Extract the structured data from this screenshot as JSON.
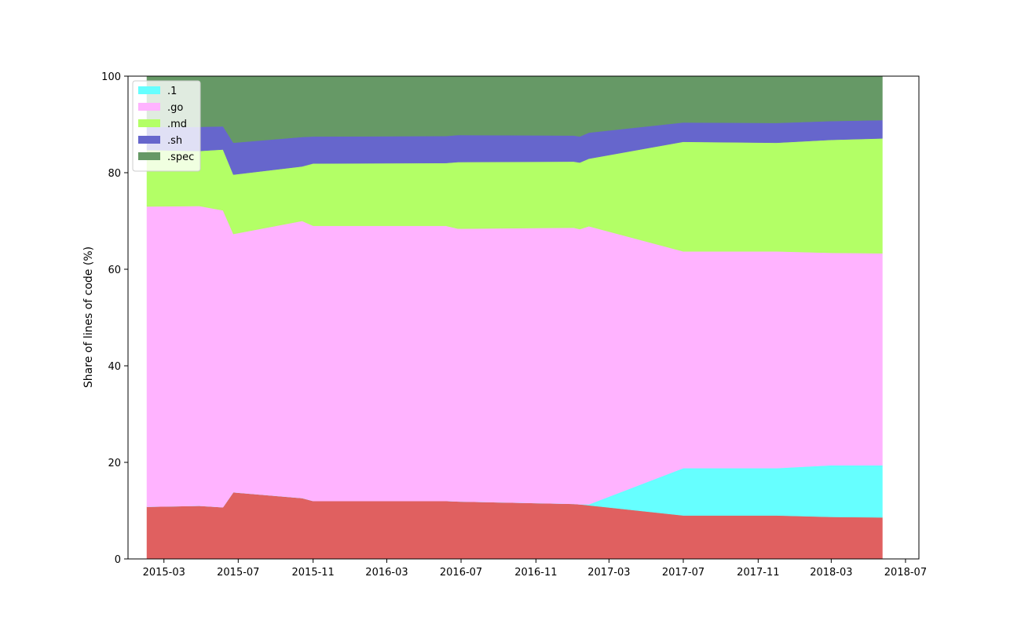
{
  "chart_data": {
    "type": "area",
    "stacked": true,
    "title": "",
    "xlabel": "",
    "ylabel": "Share of lines of code (%)",
    "ylim": [
      0,
      100
    ],
    "yticks": [
      0,
      20,
      40,
      60,
      80,
      100
    ],
    "xlim": [
      "2015-01-01",
      "2018-07-23"
    ],
    "xticks": [
      "2015-03",
      "2015-07",
      "2015-11",
      "2016-03",
      "2016-07",
      "2016-11",
      "2017-03",
      "2017-07",
      "2017-11",
      "2018-03",
      "2018-07"
    ],
    "legend_position": "top-left",
    "x": [
      "2015-02-01",
      "2015-04-28",
      "2015-06-06",
      "2015-06-23",
      "2015-10-14",
      "2015-11-01",
      "2016-06-06",
      "2016-06-26",
      "2017-01-02",
      "2017-01-12",
      "2017-01-27",
      "2017-07-01",
      "2017-12-01",
      "2018-03-01",
      "2018-05-24"
    ],
    "unlabeled_base_series": {
      "color": "#e06060",
      "values": [
        10.8,
        11.0,
        10.7,
        13.8,
        12.6,
        12.0,
        12.0,
        11.9,
        11.4,
        11.3,
        11.1,
        9.0,
        9.0,
        8.7,
        8.6
      ]
    },
    "series": [
      {
        "name": ".1",
        "color": "#66ffff",
        "values": [
          0.0,
          0.0,
          0.0,
          0.0,
          0.0,
          0.0,
          0.0,
          0.0,
          0.0,
          0.0,
          0.2,
          9.8,
          9.8,
          10.7,
          10.8
        ]
      },
      {
        "name": ".go",
        "color": "#ffb3ff",
        "values": [
          62.2,
          62.1,
          61.5,
          53.5,
          57.4,
          57.0,
          57.0,
          56.5,
          57.2,
          57.0,
          57.6,
          44.9,
          44.9,
          44.0,
          43.9
        ]
      },
      {
        "name": ".md",
        "color": "#b3ff66",
        "values": [
          11.7,
          11.4,
          12.6,
          12.3,
          11.3,
          12.9,
          13.0,
          13.8,
          13.7,
          13.8,
          14.0,
          22.7,
          22.5,
          23.4,
          23.8
        ]
      },
      {
        "name": ".sh",
        "color": "#6666cc",
        "values": [
          4.8,
          5.0,
          4.8,
          6.6,
          6.1,
          5.6,
          5.6,
          5.6,
          5.4,
          5.4,
          5.4,
          4.0,
          4.1,
          3.9,
          3.8
        ]
      },
      {
        "name": ".spec",
        "color": "#669966",
        "values": [
          10.5,
          10.5,
          10.4,
          13.8,
          12.6,
          12.5,
          12.4,
          12.2,
          12.3,
          12.5,
          11.7,
          9.6,
          9.7,
          9.3,
          9.1
        ]
      }
    ]
  }
}
